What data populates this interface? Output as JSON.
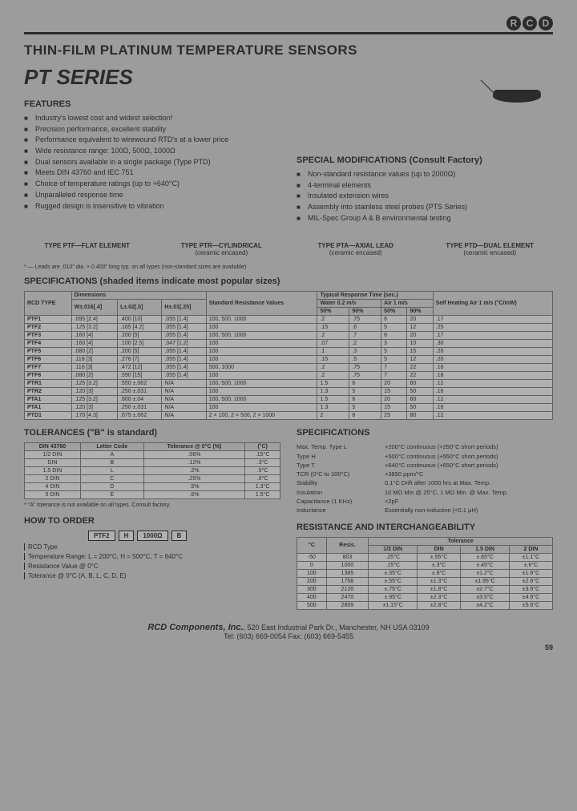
{
  "logo": [
    "R",
    "C",
    "D"
  ],
  "title": "THIN-FILM PLATINUM TEMPERATURE SENSORS",
  "series": "PT SERIES",
  "features_heading": "FEATURES",
  "features": [
    "Industry's lowest cost and widest selection!",
    "Precision performance, excellent stability",
    "Performance equivalent to wirewound RTD's at a lower price",
    "Wide resistance range: 100Ω, 500Ω, 1000Ω",
    "Dual sensors available in a single package (Type PTD)",
    "Meets DIN 43760 and IEC 751",
    "Choice of temperature ratings (up to +640°C)",
    "Unparalleled response time",
    "Rugged design is insensitive to vibration"
  ],
  "mods_heading": "SPECIAL MODIFICATIONS (Consult Factory)",
  "mods": [
    "Non-standard resistance values (up to 2000Ω)",
    "4-terminal elements",
    "Insulated extension wires",
    "Assembly into stainless steel probes (PTS Series)",
    "MIL-Spec Group A & B environmental testing"
  ],
  "types": [
    {
      "name": "TYPE PTF—FLAT ELEMENT",
      "sub": ""
    },
    {
      "name": "TYPE PTR—CYLINDRICAL",
      "sub": "(ceramic encased)"
    },
    {
      "name": "TYPE PTA—AXIAL LEAD",
      "sub": "(ceramic encased)"
    },
    {
      "name": "TYPE PTD—DUAL ELEMENT",
      "sub": "(ceramic encased)"
    }
  ],
  "footnote1": "* — Leads are .010\" dia. × 0.400\" long typ. on all types (non-standard sizes are available)",
  "specs_heading": "SPECIFICATIONS (shaded items indicate most popular sizes)",
  "spec_cols": {
    "group1": "Dimensions",
    "group2": "Standard Resistance Values",
    "group3": "Typical Response Time (sec.)",
    "group3a": "Water 0.2 m/s",
    "group3b": "Air 1 m/s",
    "group4": "Self Heating Air 1 m/s (°C/mW)",
    "c0": "RCD TYPE",
    "c1": "W±.016[.4]",
    "c2": "L±.02[.5]",
    "c3": "H±.01[.25]",
    "c5": "50%",
    "c6": "90%",
    "c7": "50%",
    "c8": "90%"
  },
  "spec_rows": [
    [
      "PTF1",
      ".095 [2.4]",
      ".400 [10]",
      ".055 [1.4]",
      "100, 500, 1000",
      ".2",
      ".75",
      "6",
      "20",
      ".17"
    ],
    [
      "PTF2",
      ".125 [3.2]",
      ".165 [4.2]",
      ".055 [1.4]",
      "100",
      ".15",
      ".6",
      "5",
      "12",
      ".25"
    ],
    [
      "PTF3",
      ".160 [4]",
      ".200 [5]",
      ".055 [1.4]",
      "100, 500, 1000",
      ".2",
      ".7",
      "6",
      "20",
      ".17"
    ],
    [
      "PTF4",
      ".160 [4]",
      ".100 [2.5]",
      ".047 [1.2]",
      "100",
      ".07",
      ".2",
      "3",
      "10",
      ".30"
    ],
    [
      "PTF5",
      ".080 [2]",
      ".200 [5]",
      ".055 [1.4]",
      "100",
      ".1",
      ".3",
      "5",
      "15",
      ".26"
    ],
    [
      "PTF6",
      ".118 [3]",
      ".276 [7]",
      ".055 [1.4]",
      "100",
      ".15",
      ".5",
      "5",
      "12",
      ".20"
    ],
    [
      "PTF7",
      ".118 [3]",
      ".472 [12]",
      ".055 [1.4]",
      "500, 1000",
      ".2",
      ".75",
      "7",
      "22",
      ".16"
    ],
    [
      "PTF8",
      ".080 [2]",
      ".590 [15]",
      ".055 [1.4]",
      "100",
      ".2",
      ".75",
      "7",
      "22",
      ".18"
    ],
    [
      "PTR1",
      ".125 [3.2]",
      ".550 ±.062",
      "N/A",
      "100, 500, 1000",
      "1.5",
      "6",
      "20",
      "60",
      ".12"
    ],
    [
      "PTR2",
      ".120 [3]",
      ".250 ±.031",
      "N/A",
      "100",
      "1.3",
      "5",
      "15",
      "50",
      ".16"
    ],
    [
      "PTA1",
      ".125 [3.2]",
      ".600 ±.04",
      "N/A",
      "100, 500, 1000",
      "1.5",
      "6",
      "20",
      "60",
      ".12"
    ],
    [
      "PTA1",
      ".120 [3]",
      ".250 ±.031",
      "N/A",
      "100",
      "1.3",
      "5",
      "15",
      "50",
      ".16"
    ],
    [
      "PTD1",
      ".170 [4.3]",
      ".675 ±.062",
      "N/A",
      "2 × 100, 2 × 500, 2 × 1000",
      "2",
      "8",
      "25",
      "80",
      ".12"
    ]
  ],
  "tol_heading": "TOLERANCES (\"B\" is standard)",
  "tol_cols": [
    "DIN 43760",
    "Letter Code",
    "Tolerance @ 0°C (%)",
    "(°C)"
  ],
  "tol_rows": [
    [
      "1/2 DIN",
      "A",
      ".06%",
      ".15°C"
    ],
    [
      "DIN",
      "B",
      ".12%",
      ".3°C"
    ],
    [
      "1.5 DIN",
      "L",
      ".2%",
      ".5°C"
    ],
    [
      "2 DIN",
      "C",
      ".25%",
      ".6°C"
    ],
    [
      "4 DIN",
      "D",
      ".5%",
      "1.3°C"
    ],
    [
      "5 DIN",
      "E",
      ".6%",
      "1.5°C"
    ]
  ],
  "tol_note": "* \"A\" tolerance is not available on all types. Consult factory.",
  "spec2_heading": "SPECIFICATIONS",
  "spec2": [
    [
      "Max. Temp. Type L",
      "+200°C continuous (+250°C short periods)"
    ],
    [
      "Type H",
      "+500°C continuous (+550°C short periods)"
    ],
    [
      "Type T",
      "+640°C continuous (+650°C short periods)"
    ],
    [
      "TCR (0°C to 100°C)",
      "+3850 ppm/°C"
    ],
    [
      "Stability",
      "0.1°C Drift after 1000 hrs at Max. Temp."
    ],
    [
      "Insulation",
      "10 MΩ Min @ 25°C, 1 MΩ Min. @ Max. Temp."
    ],
    [
      "Capacitance (1 KHz)",
      "<2pF"
    ],
    [
      "Inductance",
      "Essentially non-inductive (<0.1 μH)"
    ]
  ],
  "res_heading": "RESISTANCE AND INTERCHANGEABILITY",
  "res_cols": [
    "°C",
    "Resis.",
    "1/2 DIN",
    "DIN",
    "1.5 DIN",
    "2 DIN"
  ],
  "res_rows": [
    [
      "-50",
      "803",
      ".25°C",
      "±.55°C",
      "±.65°C",
      "±1.1°C"
    ],
    [
      "0",
      "1000",
      ".15°C",
      "±.3°C",
      "±.45°C",
      "±.6°C"
    ],
    [
      "100",
      "1385",
      "±.35°C",
      "±.8°C",
      "±1.2°C",
      "±1.6°C"
    ],
    [
      "200",
      "1758",
      "±.55°C",
      "±1.3°C",
      "±1.95°C",
      "±2.6°C"
    ],
    [
      "300",
      "2120",
      "±.75°C",
      "±1.8°C",
      "±2.7°C",
      "±3.6°C"
    ],
    [
      "400",
      "2470",
      "±.95°C",
      "±2.3°C",
      "±3.5°C",
      "±4.6°C"
    ],
    [
      "500",
      "2809",
      "±1.15°C",
      "±2.8°C",
      "±4.2°C",
      "±5.6°C"
    ]
  ],
  "order_heading": "HOW TO ORDER",
  "order_boxes": [
    "PTF2",
    "H",
    "1000Ω",
    "B"
  ],
  "order_lines": [
    "RCD Type",
    "Temperature Range: L = 200°C, H = 500°C, T = 640°C",
    "Resistance Value @ 0°C",
    "Tolerance @ 0°C (A, B, L, C, D, E)"
  ],
  "footer": {
    "company": "RCD Components, Inc.",
    "addr": ", 520 East Industrial Park Dr., Manchester, NH USA 03109",
    "contact": "Tel: (603) 669-0054        Fax: (603) 669-5455",
    "page": "59"
  }
}
